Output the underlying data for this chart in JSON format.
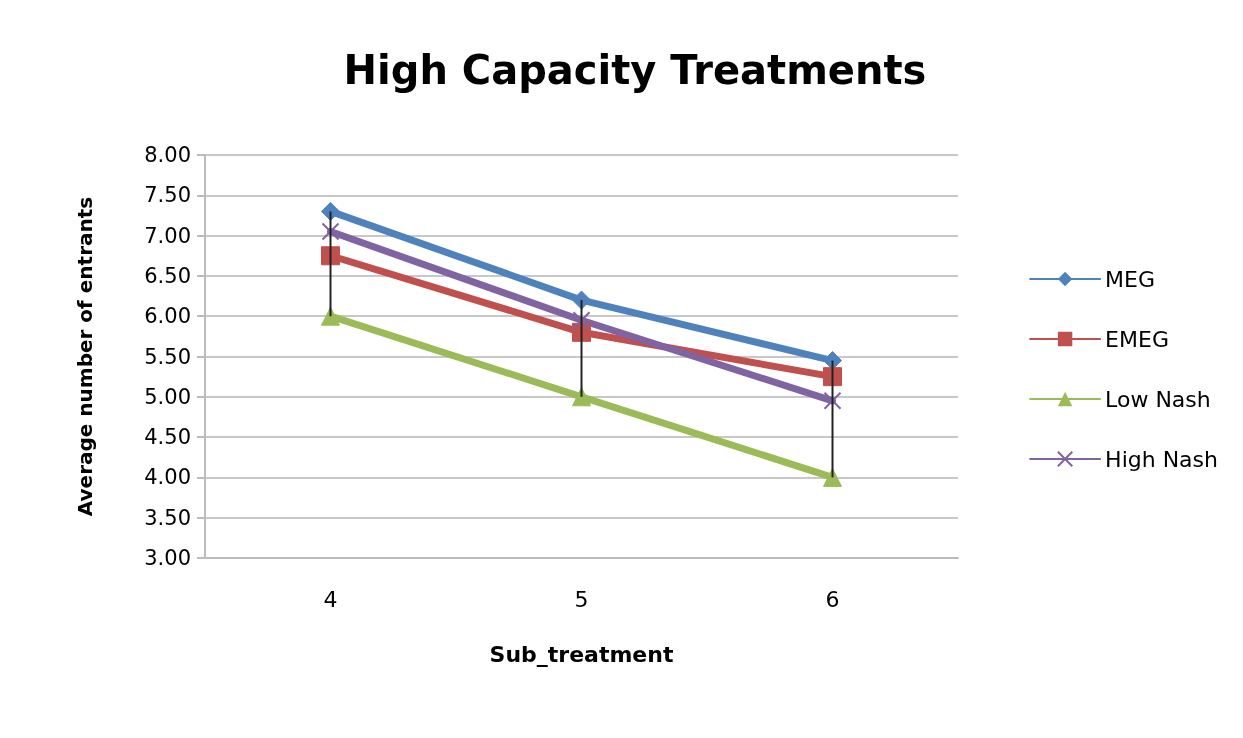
{
  "chart_data": {
    "type": "line",
    "title": "High Capacity Treatments",
    "xlabel": "Sub_treatment",
    "ylabel": "Average number of entrants",
    "categories": [
      "4",
      "5",
      "6"
    ],
    "series": [
      {
        "name": "MEG",
        "color": "#4f81bd",
        "marker": "diamond",
        "values": [
          7.3,
          6.2,
          5.45
        ]
      },
      {
        "name": "EMEG",
        "color": "#c0504d",
        "marker": "square",
        "values": [
          6.75,
          5.8,
          5.25
        ]
      },
      {
        "name": "Low Nash",
        "color": "#9bbb59",
        "marker": "triangle",
        "values": [
          6.0,
          5.0,
          4.0
        ],
        "errors": [
          [
            6.0,
            7.3
          ],
          [
            5.0,
            6.2
          ],
          [
            4.0,
            5.45
          ]
        ]
      },
      {
        "name": "High Nash",
        "color": "#8064a2",
        "marker": "cross",
        "values": [
          7.05,
          5.95,
          4.95
        ]
      }
    ],
    "ylim": [
      3,
      8
    ],
    "yticks": [
      {
        "value": 3,
        "label": "3.00"
      },
      {
        "value": 3.5,
        "label": "3.50"
      },
      {
        "value": 4,
        "label": "4.00"
      },
      {
        "value": 4.5,
        "label": "4.50"
      },
      {
        "value": 5,
        "label": "5.00"
      },
      {
        "value": 5.5,
        "label": "5.50"
      },
      {
        "value": 6,
        "label": "6.00"
      },
      {
        "value": 6.5,
        "label": "6.50"
      },
      {
        "value": 7,
        "label": "7.00"
      },
      {
        "value": 7.5,
        "label": "7.50"
      },
      {
        "value": 8,
        "label": "8.00"
      }
    ],
    "grid": "y",
    "legend": "right",
    "line_style": "solid"
  }
}
